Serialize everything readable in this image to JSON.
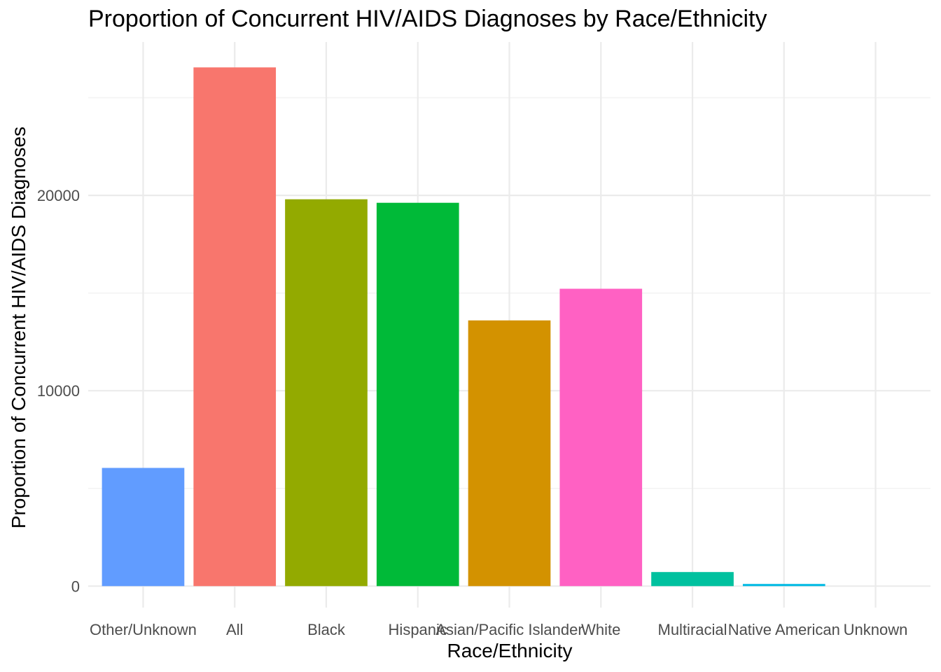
{
  "chart_data": {
    "type": "bar",
    "title": "Proportion of Concurrent HIV/AIDS Diagnoses by Race/Ethnicity",
    "xlabel": "Race/Ethnicity",
    "ylabel": "Proportion of Concurrent HIV/AIDS Diagnoses",
    "categories": [
      "Other/Unknown",
      "All",
      "Black",
      "Hispanic",
      "Asian/Pacific Islander",
      "White",
      "Multiracial",
      "Native American",
      "Unknown"
    ],
    "values": [
      6050,
      26550,
      19800,
      19620,
      13600,
      15220,
      720,
      110,
      0
    ],
    "colors": [
      "#619CFF",
      "#F8766D",
      "#93AA00",
      "#00BA38",
      "#D39200",
      "#FF61C3",
      "#00C19F",
      "#00B9E3",
      "#DB72FB"
    ],
    "ylim": [
      -1100,
      27850
    ],
    "yticks": [
      0,
      10000,
      20000
    ],
    "y_tick_labels": [
      "0",
      "10000",
      "20000"
    ],
    "grid": true,
    "legend": "none"
  }
}
